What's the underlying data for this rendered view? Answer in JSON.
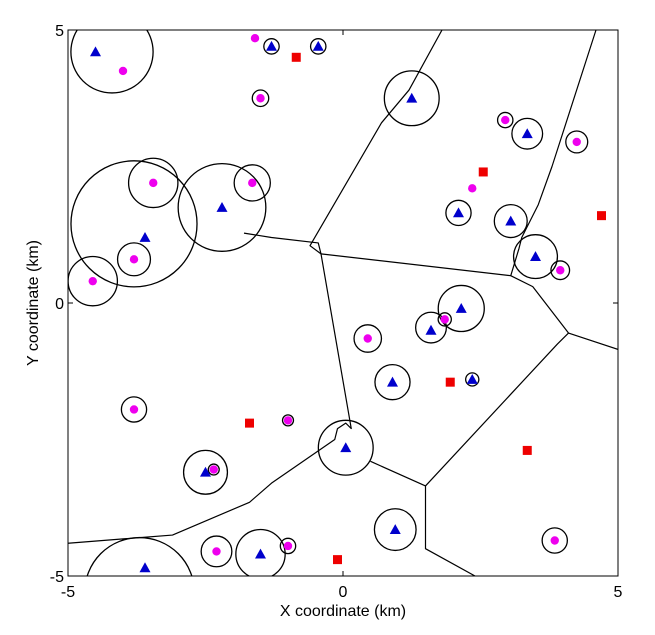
{
  "chart_data": {
    "type": "scatter",
    "title": "",
    "xlabel": "X coordinate (km)",
    "ylabel": "Y coordinate (km)",
    "xlim": [
      -5,
      5
    ],
    "ylim": [
      -5,
      5
    ],
    "xticks": [
      "-5",
      "0",
      "5"
    ],
    "yticks": [
      "-5",
      "0",
      "5"
    ],
    "grid": false,
    "colors": {
      "triangle": "#0000cc",
      "dot": "#ee00ee",
      "square": "#ee0000",
      "lines": "#000000"
    },
    "series": [
      {
        "marker": "triangle",
        "points": [
          [
            -4.5,
            4.6
          ],
          [
            -1.3,
            4.7
          ],
          [
            -0.45,
            4.7
          ],
          [
            1.25,
            3.75
          ],
          [
            3.35,
            3.1
          ],
          [
            -3.6,
            1.2
          ],
          [
            -2.2,
            1.75
          ],
          [
            2.1,
            1.65
          ],
          [
            3.05,
            1.5
          ],
          [
            3.5,
            0.85
          ],
          [
            2.15,
            -0.1
          ],
          [
            1.6,
            -0.5
          ],
          [
            0.9,
            -1.45
          ],
          [
            2.35,
            -1.4
          ],
          [
            0.05,
            -2.65
          ],
          [
            -2.5,
            -3.1
          ],
          [
            0.95,
            -4.15
          ],
          [
            -1.5,
            -4.6
          ],
          [
            -3.6,
            -4.85
          ]
        ]
      },
      {
        "marker": "dot",
        "points": [
          [
            -4.0,
            4.25
          ],
          [
            -1.6,
            4.85
          ],
          [
            -1.5,
            3.75
          ],
          [
            2.95,
            3.35
          ],
          [
            4.25,
            2.95
          ],
          [
            -3.45,
            2.2
          ],
          [
            -1.65,
            2.2
          ],
          [
            2.35,
            2.1
          ],
          [
            -3.8,
            0.8
          ],
          [
            -4.55,
            0.4
          ],
          [
            3.95,
            0.6
          ],
          [
            1.85,
            -0.3
          ],
          [
            0.45,
            -0.65
          ],
          [
            -3.8,
            -1.95
          ],
          [
            -1.0,
            -2.15
          ],
          [
            -2.35,
            -3.05
          ],
          [
            -2.3,
            -4.55
          ],
          [
            -1.0,
            -4.45
          ],
          [
            3.85,
            -4.35
          ]
        ]
      },
      {
        "marker": "square",
        "points": [
          [
            -0.85,
            4.5
          ],
          [
            2.55,
            2.4
          ],
          [
            4.7,
            1.6
          ],
          [
            1.95,
            -1.45
          ],
          [
            -1.7,
            -2.2
          ],
          [
            3.35,
            -2.7
          ],
          [
            -0.1,
            -4.7
          ]
        ]
      }
    ],
    "circles": [
      [
        -4.2,
        4.6,
        0.75
      ],
      [
        -1.3,
        4.7,
        0.14
      ],
      [
        -0.45,
        4.7,
        0.14
      ],
      [
        -1.5,
        3.75,
        0.15
      ],
      [
        1.25,
        3.75,
        0.5
      ],
      [
        2.95,
        3.35,
        0.14
      ],
      [
        3.35,
        3.1,
        0.28
      ],
      [
        4.25,
        2.95,
        0.2
      ],
      [
        -3.45,
        2.2,
        0.45
      ],
      [
        -2.2,
        1.75,
        0.8
      ],
      [
        -1.65,
        2.2,
        0.33
      ],
      [
        -3.8,
        1.45,
        1.15
      ],
      [
        2.1,
        1.65,
        0.23
      ],
      [
        3.05,
        1.5,
        0.3
      ],
      [
        3.5,
        0.85,
        0.4
      ],
      [
        3.95,
        0.6,
        0.17
      ],
      [
        -3.8,
        0.8,
        0.3
      ],
      [
        -4.55,
        0.4,
        0.45
      ],
      [
        2.15,
        -0.1,
        0.42
      ],
      [
        1.6,
        -0.45,
        0.28
      ],
      [
        1.85,
        -0.3,
        0.12
      ],
      [
        0.45,
        -0.65,
        0.25
      ],
      [
        0.9,
        -1.45,
        0.32
      ],
      [
        2.35,
        -1.4,
        0.12
      ],
      [
        -3.8,
        -1.95,
        0.23
      ],
      [
        -1.0,
        -2.15,
        0.1
      ],
      [
        0.05,
        -2.65,
        0.5
      ],
      [
        -2.5,
        -3.1,
        0.4
      ],
      [
        -2.35,
        -3.05,
        0.1
      ],
      [
        0.95,
        -4.15,
        0.38
      ],
      [
        -2.3,
        -4.55,
        0.28
      ],
      [
        -1.5,
        -4.6,
        0.45
      ],
      [
        -1.0,
        -4.45,
        0.14
      ],
      [
        3.85,
        -4.35,
        0.23
      ],
      [
        -3.7,
        -5.3,
        1.0
      ]
    ],
    "boundaries": [
      [
        [
          1.8,
          5.0
        ],
        [
          1.2,
          3.9
        ],
        [
          0.7,
          3.3
        ],
        [
          -0.6,
          1.05
        ],
        [
          -0.4,
          0.9
        ],
        [
          -0.45,
          1.1
        ],
        [
          -1.3,
          1.2
        ],
        [
          -1.8,
          1.28
        ]
      ],
      [
        [
          4.6,
          5.0
        ],
        [
          3.8,
          2.5
        ],
        [
          3.55,
          1.8
        ],
        [
          3.25,
          1.2
        ],
        [
          3.2,
          1.0
        ],
        [
          3.05,
          0.5
        ],
        [
          3.45,
          0.3
        ],
        [
          4.1,
          -0.55
        ],
        [
          5.0,
          -0.85
        ]
      ],
      [
        [
          -0.4,
          0.9
        ],
        [
          3.05,
          0.5
        ]
      ],
      [
        [
          -0.4,
          0.9
        ],
        [
          0.15,
          -2.3
        ],
        [
          0.05,
          -2.2
        ],
        [
          -0.1,
          -2.3
        ],
        [
          -0.15,
          -2.5
        ],
        [
          -1.3,
          -3.3
        ],
        [
          -1.7,
          -3.65
        ],
        [
          -3.1,
          -4.25
        ],
        [
          -5.0,
          -4.4
        ]
      ],
      [
        [
          4.1,
          -0.55
        ],
        [
          3.9,
          -0.75
        ],
        [
          1.5,
          -3.35
        ],
        [
          1.5,
          -4.5
        ],
        [
          2.4,
          -5.0
        ]
      ],
      [
        [
          0.5,
          -2.9
        ],
        [
          1.5,
          -3.35
        ]
      ]
    ]
  }
}
